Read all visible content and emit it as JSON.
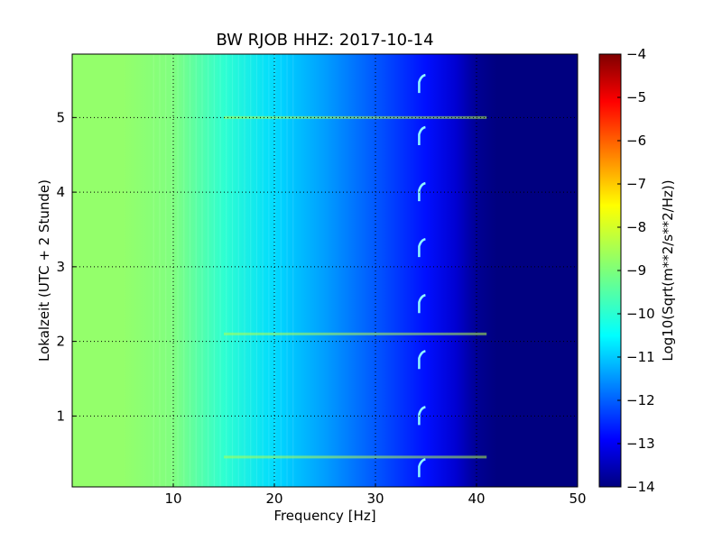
{
  "chart_data": {
    "type": "heatmap",
    "title": "BW RJOB HHZ: 2017-10-14",
    "xlabel": "Frequency [Hz]",
    "ylabel": "Lokalzeit (UTC + 2 Stunde)",
    "xlim": [
      0,
      50
    ],
    "ylim": [
      5.85,
      0.05
    ],
    "x_ticks": [
      10,
      20,
      30,
      40,
      50
    ],
    "y_ticks": [
      1,
      2,
      3,
      4,
      5
    ],
    "grid": true,
    "colormap": "jet",
    "colorbar": {
      "label": "Log10(Sqrt(m**2/s**2/Hz))",
      "range": [
        -14,
        -4
      ],
      "ticks": [
        -4,
        -5,
        -6,
        -7,
        -8,
        -9,
        -10,
        -11,
        -12,
        -13,
        -14
      ]
    },
    "approx_level_vs_frequency": {
      "frequency_hz": [
        0,
        5,
        10,
        15,
        20,
        25,
        30,
        35,
        38,
        40,
        42,
        50
      ],
      "log10_value": [
        -8.8,
        -8.8,
        -9.0,
        -9.8,
        -10.6,
        -11.2,
        -11.9,
        -12.6,
        -13.2,
        -13.8,
        -14,
        -14
      ]
    },
    "recurring_feature": {
      "frequency_hz": 34.5,
      "times": [
        0.3,
        1.0,
        1.75,
        2.5,
        3.25,
        4.0,
        4.75,
        5.45
      ]
    },
    "horizontal_events": [
      0.45,
      2.1,
      5.0
    ]
  }
}
